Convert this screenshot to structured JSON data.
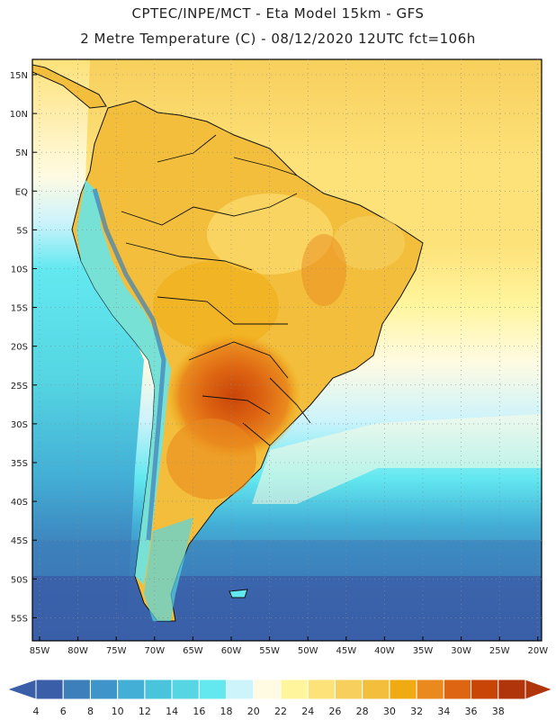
{
  "title_line1": "CPTEC/INPE/MCT -  Eta Model 15km - GFS",
  "title_line2": "2 Metre Temperature (C) - 08/12/2020 12UTC fct=106h",
  "axes": {
    "lat_labels": [
      "15N",
      "10N",
      "5N",
      "EQ",
      "5S",
      "10S",
      "15S",
      "20S",
      "25S",
      "30S",
      "35S",
      "40S",
      "45S",
      "50S",
      "55S"
    ],
    "lon_labels": [
      "85W",
      "80W",
      "75W",
      "70W",
      "65W",
      "60W",
      "55W",
      "50W",
      "45W",
      "40W",
      "35W",
      "30W",
      "25W",
      "20W"
    ]
  },
  "colorbar": {
    "labels": [
      "4",
      "6",
      "8",
      "10",
      "12",
      "14",
      "16",
      "18",
      "20",
      "22",
      "24",
      "26",
      "28",
      "30",
      "32",
      "34",
      "36",
      "38"
    ],
    "colors": [
      "#3a5fa8",
      "#3c7fba",
      "#3f95c9",
      "#43aed6",
      "#4ac4db",
      "#55d6e2",
      "#63e8f0",
      "#cdf3fb",
      "#fffbe2",
      "#fff59c",
      "#fde27a",
      "#f7cf5c",
      "#f2be3c",
      "#f0ab12",
      "#ea8a1e",
      "#de6512",
      "#c84508",
      "#b1350a"
    ]
  },
  "colors": {
    "map_border": "#000000",
    "grid": "#8a8a8a",
    "coast": "#111111"
  }
}
